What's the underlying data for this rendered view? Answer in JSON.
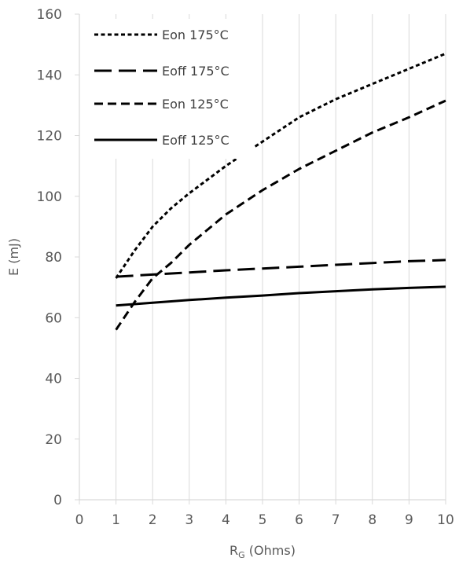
{
  "chart_data": {
    "type": "line",
    "title": "",
    "xlabel": {
      "main": "R",
      "sub": "G",
      "suffix": " (Ohms)"
    },
    "ylabel": "E (mJ)",
    "xlim": [
      0,
      10
    ],
    "ylim": [
      0,
      160
    ],
    "xticks": [
      0,
      1,
      2,
      3,
      4,
      5,
      6,
      7,
      8,
      9,
      10
    ],
    "yticks": [
      0,
      20,
      40,
      60,
      80,
      100,
      120,
      140,
      160
    ],
    "grid": "vertical",
    "legend_position": "top-left",
    "series": [
      {
        "name": "Eon 175°C",
        "style": "dotted",
        "x": [
          1,
          1.5,
          2,
          2.5,
          3,
          4,
          5,
          6,
          7,
          8,
          9,
          10
        ],
        "y": [
          73,
          82,
          90,
          96,
          101,
          110,
          118,
          126,
          132,
          137,
          142,
          147
        ]
      },
      {
        "name": "Eoff 175°C",
        "style": "long-dash",
        "x": [
          1,
          2,
          3,
          4,
          5,
          6,
          7,
          8,
          9,
          10
        ],
        "y": [
          73.5,
          74.2,
          74.9,
          75.6,
          76.2,
          76.8,
          77.4,
          78,
          78.6,
          79
        ]
      },
      {
        "name": "Eon 125°C",
        "style": "dash",
        "x": [
          1,
          1.5,
          2,
          2.5,
          3,
          4,
          5,
          6,
          7,
          8,
          9,
          10
        ],
        "y": [
          56,
          65,
          73,
          78,
          84,
          94,
          102,
          109,
          115,
          121,
          126,
          131.5
        ]
      },
      {
        "name": "Eoff 125°C",
        "style": "solid",
        "x": [
          1,
          2,
          3,
          4,
          5,
          6,
          7,
          8,
          9,
          10
        ],
        "y": [
          64,
          64.9,
          65.8,
          66.6,
          67.3,
          68.1,
          68.7,
          69.3,
          69.8,
          70.2
        ]
      }
    ],
    "colors": {
      "line": "#000000",
      "grid": "#d9d9d9",
      "text": "#595959"
    }
  }
}
